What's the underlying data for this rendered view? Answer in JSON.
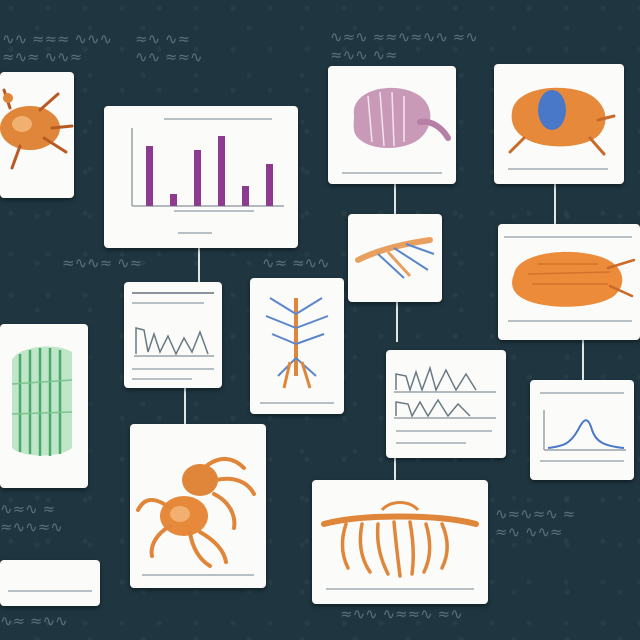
{
  "colors": {
    "background": "#1f3640",
    "card": "#fbfbf9",
    "bar": "#8e3a8e",
    "orange": "#e0863a",
    "green": "#4aa86a",
    "blue": "#4a78c8",
    "pink": "#b57fa6"
  },
  "cards": [
    {
      "name": "card-orange-insect-topleft"
    },
    {
      "name": "card-purple-bar-chart"
    },
    {
      "name": "card-pink-organ"
    },
    {
      "name": "card-orange-blue-organism"
    },
    {
      "name": "card-blue-branch-specimen"
    },
    {
      "name": "card-orange-blob"
    },
    {
      "name": "card-line-chart-left"
    },
    {
      "name": "card-blue-root-specimen"
    },
    {
      "name": "card-green-tissue"
    },
    {
      "name": "card-line-chart-middle"
    },
    {
      "name": "card-blue-curve-chart"
    },
    {
      "name": "card-orange-spider"
    },
    {
      "name": "card-orange-tentacle"
    },
    {
      "name": "card-blank-bottom-left"
    }
  ]
}
